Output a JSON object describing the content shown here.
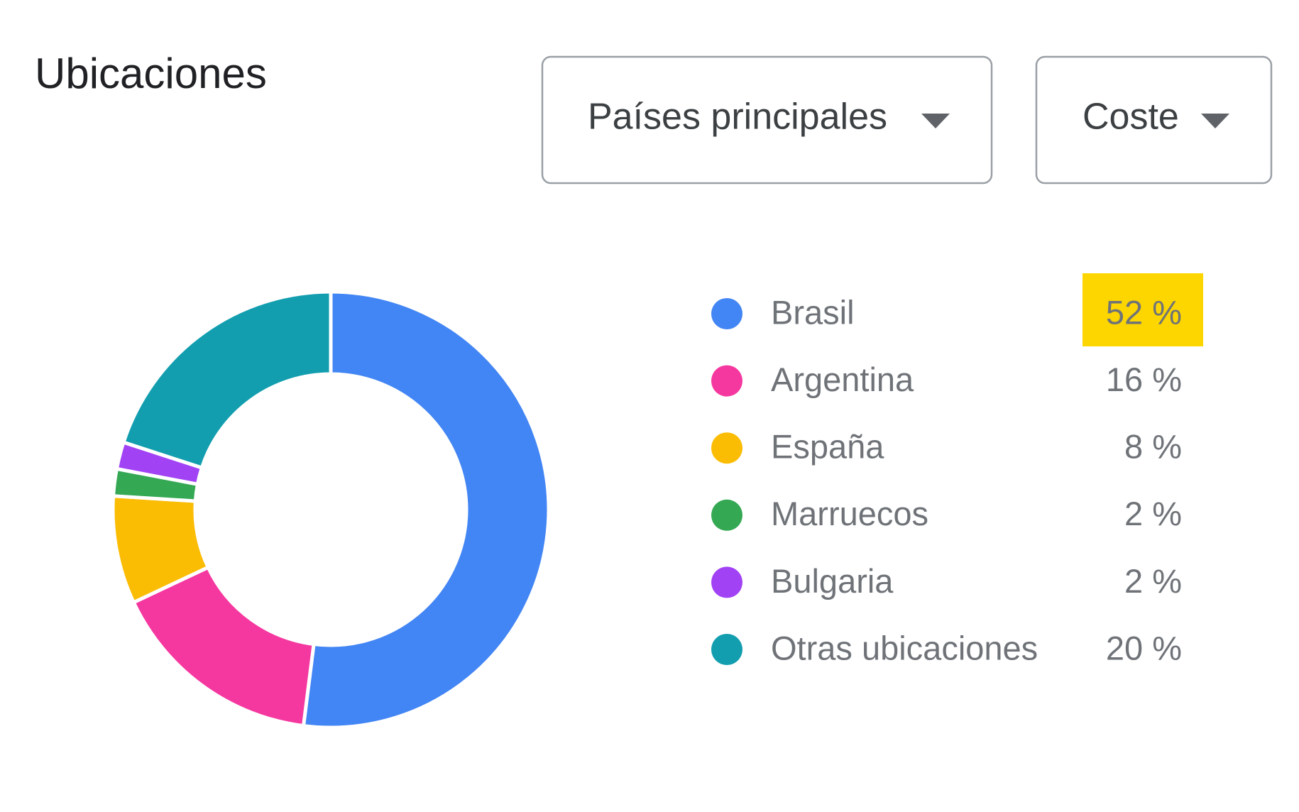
{
  "header": {
    "title": "Ubicaciones",
    "dropdowns": [
      "Países principales",
      "Coste"
    ]
  },
  "chart_data": {
    "type": "donut",
    "categories": [
      "Brasil",
      "Argentina",
      "España",
      "Marruecos",
      "Bulgaria",
      "Otras ubicaciones"
    ],
    "values": [
      52,
      16,
      8,
      2,
      2,
      20
    ],
    "value_labels": [
      "52 %",
      "16 %",
      "8 %",
      "2 %",
      "2 %",
      "20 %"
    ],
    "colors": [
      "#4285f4",
      "#f538a0",
      "#fbbc04",
      "#34a853",
      "#a142f4",
      "#129eaf"
    ]
  }
}
